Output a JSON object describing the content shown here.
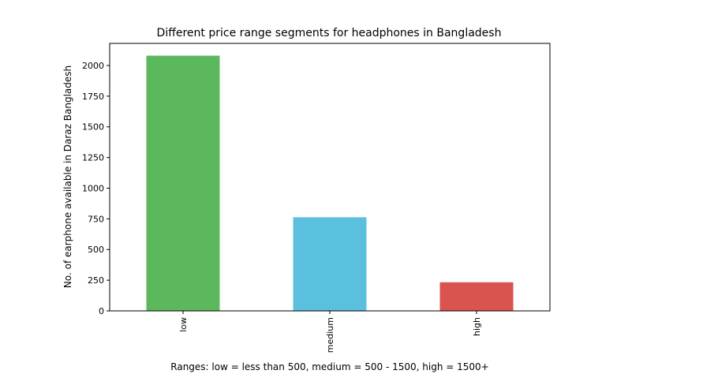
{
  "chart_data": {
    "type": "bar",
    "title": "Different price range segments for headphones in Bangladesh",
    "xlabel": "Ranges: low = less than 500, medium = 500 - 1500, high = 1500+",
    "ylabel": "No. of earphone available in Daraz Bangladesh",
    "categories": [
      "low",
      "medium",
      "high"
    ],
    "values": [
      2080,
      763,
      233
    ],
    "colors": [
      "#5cb85c",
      "#5bc0de",
      "#d9534f"
    ],
    "ylim": [
      0,
      2180
    ],
    "yticks": [
      0,
      250,
      500,
      750,
      1000,
      1250,
      1500,
      1750,
      2000
    ],
    "grid": false,
    "legend": false
  }
}
